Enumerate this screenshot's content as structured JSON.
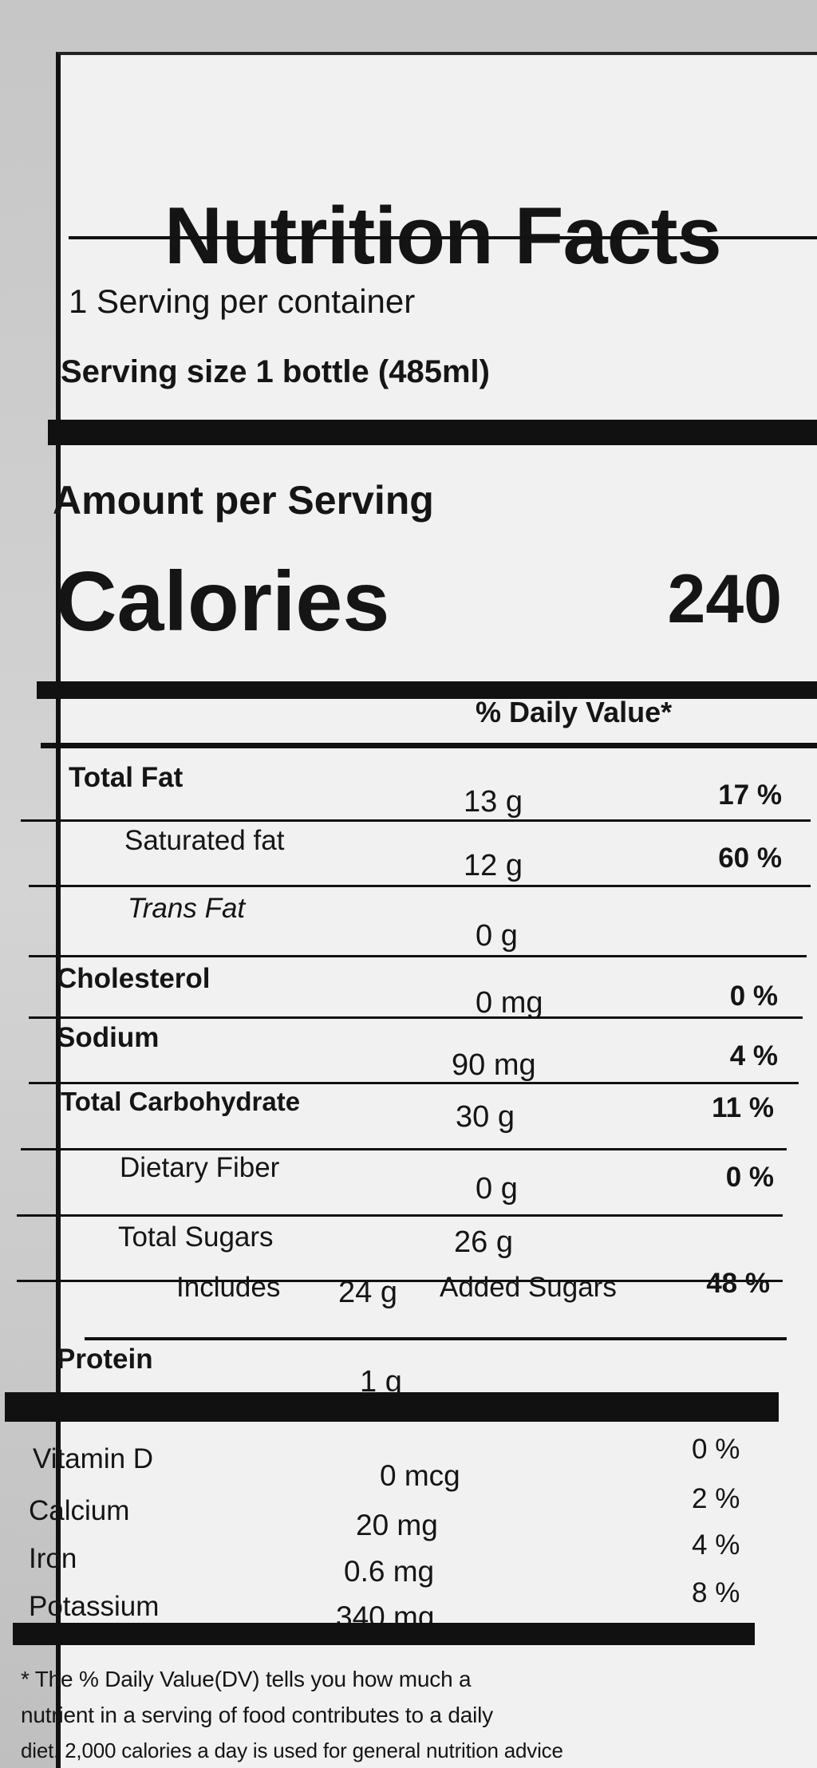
{
  "title": "Nutrition Facts",
  "servings_per_container": "1 Serving per container",
  "serving_size": "Serving size 1 bottle (485ml)",
  "amount_per_serving": "Amount per Serving",
  "calories_label": "Calories",
  "calories_value": "240",
  "daily_value_header": "% Daily Value*",
  "nutrients": [
    {
      "label": "Total Fat",
      "amount": "13 g",
      "dv": "17 %"
    },
    {
      "label": "Saturated fat",
      "amount": "12 g",
      "dv": "60 %"
    },
    {
      "label": "Trans Fat",
      "amount": "0 g",
      "dv": ""
    },
    {
      "label": "Cholesterol",
      "amount": "0 mg",
      "dv": "0 %"
    },
    {
      "label": "Sodium",
      "amount": "90 mg",
      "dv": "4 %"
    },
    {
      "label": "Total Carbohydrate",
      "amount": "30 g",
      "dv": "11 %"
    },
    {
      "label": "Dietary Fiber",
      "amount": "0 g",
      "dv": "0 %"
    },
    {
      "label": "Total Sugars",
      "amount": "26 g",
      "dv": ""
    },
    {
      "label": "Includes",
      "amount": "24 g",
      "suffix": "Added Sugars",
      "dv": "48 %"
    },
    {
      "label": "Protein",
      "amount": "1 g",
      "dv": ""
    }
  ],
  "vitamins": [
    {
      "label": "Vitamin D",
      "amount": "0 mcg",
      "dv": "0 %"
    },
    {
      "label": "Calcium",
      "amount": "20 mg",
      "dv": "2 %"
    },
    {
      "label": "Iron",
      "amount": "0.6 mg",
      "dv": "4 %"
    },
    {
      "label": "Potassium",
      "amount": "340 mg",
      "dv": "8 %"
    }
  ],
  "footnote": [
    "* The % Daily Value(DV) tells you how much a",
    "nutrient in a serving of food contributes to a daily",
    "diet. 2,000 calories a day is used for general nutrition advice"
  ]
}
